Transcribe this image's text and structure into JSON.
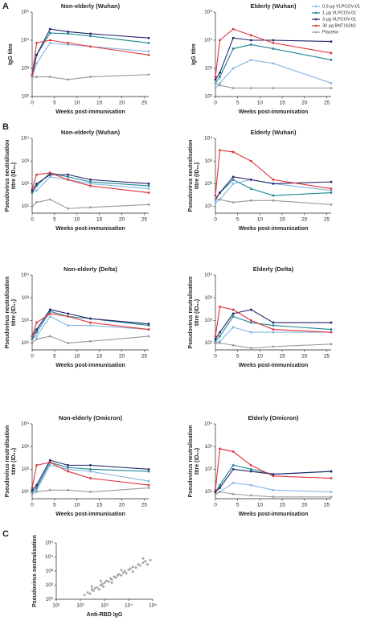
{
  "panel_labels": [
    "A",
    "B",
    "C"
  ],
  "legend": [
    {
      "name": "0.3 μg VLPCOV-01",
      "color": "#86b6e2"
    },
    {
      "name": "1 μg VLPCOV-01",
      "color": "#1d8597"
    },
    {
      "name": "3 μg VLPCOV-01",
      "color": "#1f2566"
    },
    {
      "name": "30 μg BNT162b2",
      "color": "#e0313b"
    },
    {
      "name": "Placebo",
      "color": "#9a9a9a"
    }
  ],
  "chart_data": [
    {
      "type": "line",
      "title": "Non-elderly (Wuhan)",
      "xlabel": "Weeks post-immunisation",
      "ylabel_lines": [
        "IgG titre"
      ],
      "log_y": true,
      "x": [
        0,
        1,
        4,
        8,
        13,
        26
      ],
      "xlim": [
        0,
        26
      ],
      "xticks": [
        0,
        5,
        10,
        15,
        20,
        25
      ],
      "ylim": [
        100,
        100000
      ],
      "yticks": [
        {
          "value": 100,
          "label": "10²"
        },
        {
          "value": 1000,
          "label": "10³"
        },
        {
          "value": 10000,
          "label": "10⁴"
        },
        {
          "value": 100000,
          "label": "10⁵"
        }
      ],
      "series": [
        {
          "values": [
            500,
            1500,
            8000,
            7000,
            6000,
            4000
          ]
        },
        {
          "values": [
            500,
            3000,
            18000,
            17000,
            14000,
            8000
          ]
        },
        {
          "values": [
            600,
            3000,
            25000,
            20000,
            17000,
            12000
          ]
        },
        {
          "values": [
            600,
            8000,
            10000,
            8000,
            6000,
            3000
          ]
        },
        {
          "values": [
            500,
            500,
            500,
            400,
            500,
            600
          ]
        }
      ]
    },
    {
      "type": "line",
      "title": "Elderly (Wuhan)",
      "xlabel": "Weeks post-immunisation",
      "ylabel_lines": [
        "IgG titre"
      ],
      "log_y": true,
      "x": [
        0,
        1,
        4,
        8,
        13,
        26
      ],
      "xlim": [
        0,
        26
      ],
      "xticks": [
        0,
        5,
        10,
        15,
        20,
        25
      ],
      "ylim": [
        100,
        100000
      ],
      "yticks": [
        {
          "value": 100,
          "label": "10²"
        },
        {
          "value": 1000,
          "label": "10³"
        },
        {
          "value": 10000,
          "label": "10⁴"
        },
        {
          "value": 100000,
          "label": "10⁵"
        }
      ],
      "series": [
        {
          "values": [
            200,
            300,
            1000,
            2000,
            1500,
            300
          ]
        },
        {
          "values": [
            300,
            500,
            5000,
            7000,
            5000,
            2000
          ]
        },
        {
          "values": [
            400,
            700,
            12000,
            10000,
            10000,
            9000
          ]
        },
        {
          "values": [
            500,
            10000,
            25000,
            15000,
            8000,
            3500
          ]
        },
        {
          "values": [
            300,
            250,
            200,
            200,
            200,
            200
          ]
        }
      ]
    },
    {
      "type": "line",
      "title": "Non-elderly (Wuhan)",
      "xlabel": "Weeks post-immunisation",
      "ylabel_lines": [
        "Pseudovirus neutralisation",
        "titre (ID₅₀)"
      ],
      "log_y": true,
      "x": [
        0,
        1,
        4,
        8,
        13,
        26
      ],
      "xlim": [
        0,
        26
      ],
      "xticks": [
        0,
        5,
        10,
        15,
        20,
        25
      ],
      "ylim": [
        5,
        10000
      ],
      "yticks": [
        {
          "value": 10,
          "label": "10¹"
        },
        {
          "value": 100,
          "label": "10²"
        },
        {
          "value": 1000,
          "label": "10³"
        },
        {
          "value": 10000,
          "label": "10⁴"
        }
      ],
      "series": [
        {
          "values": [
            40,
            50,
            200,
            150,
            100,
            60
          ]
        },
        {
          "values": [
            40,
            80,
            300,
            200,
            120,
            80
          ]
        },
        {
          "values": [
            50,
            100,
            250,
            250,
            150,
            100
          ]
        },
        {
          "values": [
            60,
            250,
            300,
            150,
            80,
            40
          ]
        },
        {
          "values": [
            10,
            15,
            20,
            8,
            9,
            12
          ]
        }
      ]
    },
    {
      "type": "line",
      "title": "Elderly (Wuhan)",
      "xlabel": "Weeks post-immunisation",
      "ylabel_lines": [
        "Pseudovirus neutralisation",
        "titre (ID₅₀)"
      ],
      "log_y": true,
      "x": [
        0,
        1,
        4,
        8,
        13,
        26
      ],
      "xlim": [
        0,
        26
      ],
      "xticks": [
        0,
        5,
        10,
        15,
        20,
        25
      ],
      "ylim": [
        5,
        10000
      ],
      "yticks": [
        {
          "value": 10,
          "label": "10¹"
        },
        {
          "value": 100,
          "label": "10²"
        },
        {
          "value": 1000,
          "label": "10³"
        },
        {
          "value": 10000,
          "label": "10⁴"
        }
      ],
      "series": [
        {
          "values": [
            15,
            20,
            100,
            150,
            100,
            50
          ]
        },
        {
          "values": [
            20,
            40,
            150,
            60,
            30,
            40
          ]
        },
        {
          "values": [
            20,
            40,
            200,
            150,
            100,
            120
          ]
        },
        {
          "values": [
            30,
            3000,
            2500,
            1000,
            150,
            60
          ]
        },
        {
          "values": [
            20,
            20,
            15,
            18,
            18,
            12
          ]
        }
      ]
    },
    {
      "type": "line",
      "title": "Non-elderly (Delta)",
      "xlabel": "Weeks post-immunisation",
      "ylabel_lines": [
        "Pseudovirus neutralisation",
        "titre (ID₅₀)"
      ],
      "log_y": true,
      "x": [
        0,
        1,
        4,
        8,
        13,
        26
      ],
      "xlim": [
        0,
        26
      ],
      "xticks": [
        0,
        5,
        10,
        15,
        20,
        25
      ],
      "ylim": [
        5,
        10000
      ],
      "yticks": [
        {
          "value": 10,
          "label": "10¹"
        },
        {
          "value": 100,
          "label": "10²"
        },
        {
          "value": 1000,
          "label": "10³"
        },
        {
          "value": 10000,
          "label": "10⁴"
        }
      ],
      "series": [
        {
          "values": [
            15,
            20,
            150,
            60,
            60,
            40
          ]
        },
        {
          "values": [
            15,
            30,
            250,
            150,
            120,
            60
          ]
        },
        {
          "values": [
            20,
            40,
            300,
            200,
            120,
            70
          ]
        },
        {
          "values": [
            20,
            80,
            200,
            150,
            80,
            40
          ]
        },
        {
          "values": [
            10,
            15,
            20,
            10,
            12,
            20
          ]
        }
      ]
    },
    {
      "type": "line",
      "title": "Elderly (Delta)",
      "xlabel": "Weeks post-immunisation",
      "ylabel_lines": [
        "Pseudovirus neutralisation",
        "titre (ID₅₀)"
      ],
      "log_y": true,
      "x": [
        0,
        1,
        4,
        8,
        13,
        26
      ],
      "xlim": [
        0,
        26
      ],
      "xticks": [
        0,
        5,
        10,
        15,
        20,
        25
      ],
      "ylim": [
        5,
        10000
      ],
      "yticks": [
        {
          "value": 10,
          "label": "10¹"
        },
        {
          "value": 100,
          "label": "10²"
        },
        {
          "value": 1000,
          "label": "10³"
        },
        {
          "value": 10000,
          "label": "10⁴"
        }
      ],
      "series": [
        {
          "values": [
            10,
            12,
            50,
            30,
            30,
            30
          ]
        },
        {
          "values": [
            12,
            20,
            150,
            80,
            60,
            40
          ]
        },
        {
          "values": [
            15,
            30,
            200,
            300,
            80,
            80
          ]
        },
        {
          "values": [
            20,
            400,
            300,
            100,
            40,
            30
          ]
        },
        {
          "values": [
            10,
            10,
            8,
            6,
            7,
            9
          ]
        }
      ]
    },
    {
      "type": "line",
      "title": "Non-elderly (Omicron)",
      "xlabel": "Weeks post-immunisation",
      "ylabel_lines": [
        "Pseudovirus neutralisation",
        "titre (ID₅₀)"
      ],
      "log_y": true,
      "x": [
        0,
        1,
        4,
        8,
        13,
        26
      ],
      "xlim": [
        0,
        26
      ],
      "xticks": [
        0,
        5,
        10,
        15,
        20,
        25
      ],
      "ylim": [
        5,
        10000
      ],
      "yticks": [
        {
          "value": 10,
          "label": "10¹"
        },
        {
          "value": 100,
          "label": "10²"
        },
        {
          "value": 1000,
          "label": "10³"
        },
        {
          "value": 10000,
          "label": "10⁴"
        }
      ],
      "series": [
        {
          "values": [
            10,
            12,
            150,
            100,
            80,
            30
          ]
        },
        {
          "values": [
            10,
            15,
            200,
            120,
            100,
            80
          ]
        },
        {
          "values": [
            12,
            20,
            250,
            150,
            150,
            100
          ]
        },
        {
          "values": [
            15,
            150,
            200,
            80,
            40,
            20
          ]
        },
        {
          "values": [
            8,
            10,
            12,
            12,
            10,
            15
          ]
        }
      ]
    },
    {
      "type": "line",
      "title": "Elderly (Omicron)",
      "xlabel": "Weeks post-immunisation",
      "ylabel_lines": [
        "Pseudovirus neutralisation",
        "titre (ID₅₀)"
      ],
      "log_y": true,
      "x": [
        0,
        1,
        4,
        8,
        13,
        26
      ],
      "xlim": [
        0,
        26
      ],
      "xticks": [
        0,
        5,
        10,
        15,
        20,
        25
      ],
      "ylim": [
        5,
        10000
      ],
      "yticks": [
        {
          "value": 10,
          "label": "10¹"
        },
        {
          "value": 100,
          "label": "10²"
        },
        {
          "value": 1000,
          "label": "10³"
        },
        {
          "value": 10000,
          "label": "10⁴"
        }
      ],
      "series": [
        {
          "values": [
            8,
            10,
            25,
            20,
            12,
            10
          ]
        },
        {
          "values": [
            10,
            20,
            150,
            100,
            60,
            80
          ]
        },
        {
          "values": [
            10,
            15,
            100,
            80,
            60,
            80
          ]
        },
        {
          "values": [
            12,
            800,
            600,
            150,
            50,
            40
          ]
        },
        {
          "values": [
            8,
            10,
            8,
            7,
            6,
            6
          ]
        }
      ]
    },
    {
      "type": "scatter",
      "xlabel": "Anti-RBD IgG",
      "ylabel_lines": [
        "Pseudovirus neutralisation"
      ],
      "log_x": true,
      "log_y": true,
      "color": "#a6a6a6",
      "xlim": [
        10,
        100000
      ],
      "xticks": [
        {
          "value": 10,
          "label": "10¹"
        },
        {
          "value": 100,
          "label": "10²"
        },
        {
          "value": 1000,
          "label": "10³"
        },
        {
          "value": 10000,
          "label": "10⁴"
        },
        {
          "value": 100000,
          "label": "10⁵"
        }
      ],
      "ylim": [
        10,
        100000
      ],
      "yticks": [
        {
          "value": 10,
          "label": "10¹"
        },
        {
          "value": 100,
          "label": "10²"
        },
        {
          "value": 1000,
          "label": "10³"
        },
        {
          "value": 10000,
          "label": "10⁴"
        },
        {
          "value": 100000,
          "label": "10⁵"
        }
      ],
      "x": [
        150,
        200,
        250,
        300,
        350,
        400,
        500,
        600,
        700,
        800,
        900,
        1000,
        1200,
        1500,
        1800,
        2000,
        2500,
        3000,
        3500,
        4000,
        5000,
        6000,
        7000,
        8000,
        10000,
        12000,
        15000,
        20000,
        25000,
        30000,
        40000,
        50000,
        60000,
        80000,
        300,
        700,
        2000,
        5000,
        15000,
        40000
      ],
      "values": [
        20,
        30,
        25,
        50,
        40,
        60,
        70,
        50,
        100,
        120,
        80,
        150,
        200,
        180,
        300,
        250,
        400,
        350,
        500,
        600,
        500,
        800,
        1000,
        700,
        1200,
        1500,
        2000,
        1800,
        3000,
        2500,
        4000,
        5000,
        3000,
        6000,
        80,
        200,
        150,
        1200,
        900,
        8000
      ]
    }
  ]
}
